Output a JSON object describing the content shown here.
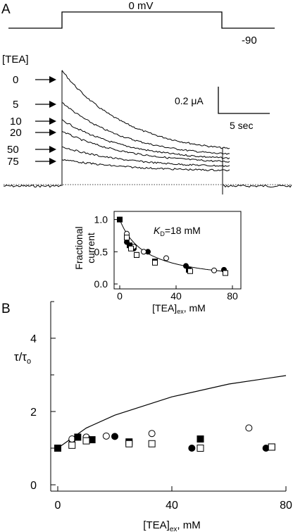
{
  "panel_a": {
    "label": "A",
    "protocol": {
      "step_label": "0 mV",
      "hold_label": "-90"
    },
    "tea_header": "[TEA]",
    "tea_labels": [
      "0",
      "5",
      "10",
      "20",
      "50",
      "75"
    ],
    "scale_bar": {
      "y_label": "0.2 μA",
      "x_label": "5 sec"
    }
  },
  "panel_b": {
    "label": "B"
  },
  "chart_data": [
    {
      "type": "scatter",
      "name": "inset-fractional-current",
      "annotation": {
        "k": "K",
        "sub": "D",
        "rest": "=18 mM"
      },
      "xlabel": {
        "main": "[TEA]",
        "sub": "ex",
        "rest": ", mM"
      },
      "ylabel": [
        "Fractional",
        "current"
      ],
      "xlim": [
        0,
        80
      ],
      "ylim": [
        0,
        1.05
      ],
      "xticks": [
        0,
        40,
        80
      ],
      "yticks": [
        0.0,
        0.5,
        1.0
      ],
      "ytick_labels": [
        "0.0",
        "0.5",
        "1.0"
      ],
      "series": [
        {
          "marker": "filled-circle",
          "x": [
            0,
            5,
            10,
            20,
            47,
            74
          ],
          "y": [
            1.0,
            0.65,
            0.55,
            0.5,
            0.28,
            0.22
          ]
        },
        {
          "marker": "open-circle",
          "x": [
            5,
            10,
            17,
            33,
            67
          ],
          "y": [
            0.78,
            0.58,
            0.5,
            0.4,
            0.21
          ]
        },
        {
          "marker": "filled-square",
          "x": [
            0,
            7,
            12,
            25,
            49
          ],
          "y": [
            1.0,
            0.6,
            0.45,
            0.35,
            0.22
          ]
        },
        {
          "marker": "open-square",
          "x": [
            5,
            8,
            12,
            25,
            50,
            75
          ],
          "y": [
            0.72,
            0.55,
            0.45,
            0.33,
            0.2,
            0.17
          ]
        }
      ],
      "fit": {
        "kind": "KD/(KD+x)",
        "kd": 18,
        "x_range": [
          0,
          77
        ]
      }
    },
    {
      "type": "scatter",
      "name": "tau-ratio",
      "ylabel": {
        "main": "τ/τ",
        "sub": "o"
      },
      "xlabel": {
        "main": "[TEA]",
        "sub": "ex",
        "rest": ", mM"
      },
      "xlim": [
        0,
        80
      ],
      "ylim": [
        0,
        5
      ],
      "xticks": [
        0,
        40,
        80
      ],
      "yticks": [
        0,
        2,
        4
      ],
      "minor_yticks": [
        1,
        3,
        5
      ],
      "series": [
        {
          "marker": "filled-circle",
          "x": [
            5,
            10,
            20,
            47,
            73
          ],
          "y": [
            1.23,
            1.3,
            1.32,
            1.0,
            1.0
          ]
        },
        {
          "marker": "open-circle",
          "x": [
            5,
            10,
            17,
            33,
            67
          ],
          "y": [
            1.25,
            1.3,
            1.33,
            1.4,
            1.55
          ]
        },
        {
          "marker": "filled-square",
          "x": [
            0,
            7,
            12,
            25,
            50,
            75
          ],
          "y": [
            1.0,
            1.3,
            1.23,
            1.17,
            1.25,
            1.03
          ]
        },
        {
          "marker": "open-square",
          "x": [
            5,
            10,
            25,
            33,
            50,
            75
          ],
          "y": [
            1.08,
            1.2,
            1.12,
            1.12,
            1.0,
            1.03
          ]
        }
      ],
      "fit": {
        "kind": "curve",
        "x": [
          0,
          10,
          20,
          40,
          60,
          80
        ],
        "y": [
          1.0,
          1.55,
          1.9,
          2.4,
          2.75,
          2.98
        ]
      }
    }
  ]
}
